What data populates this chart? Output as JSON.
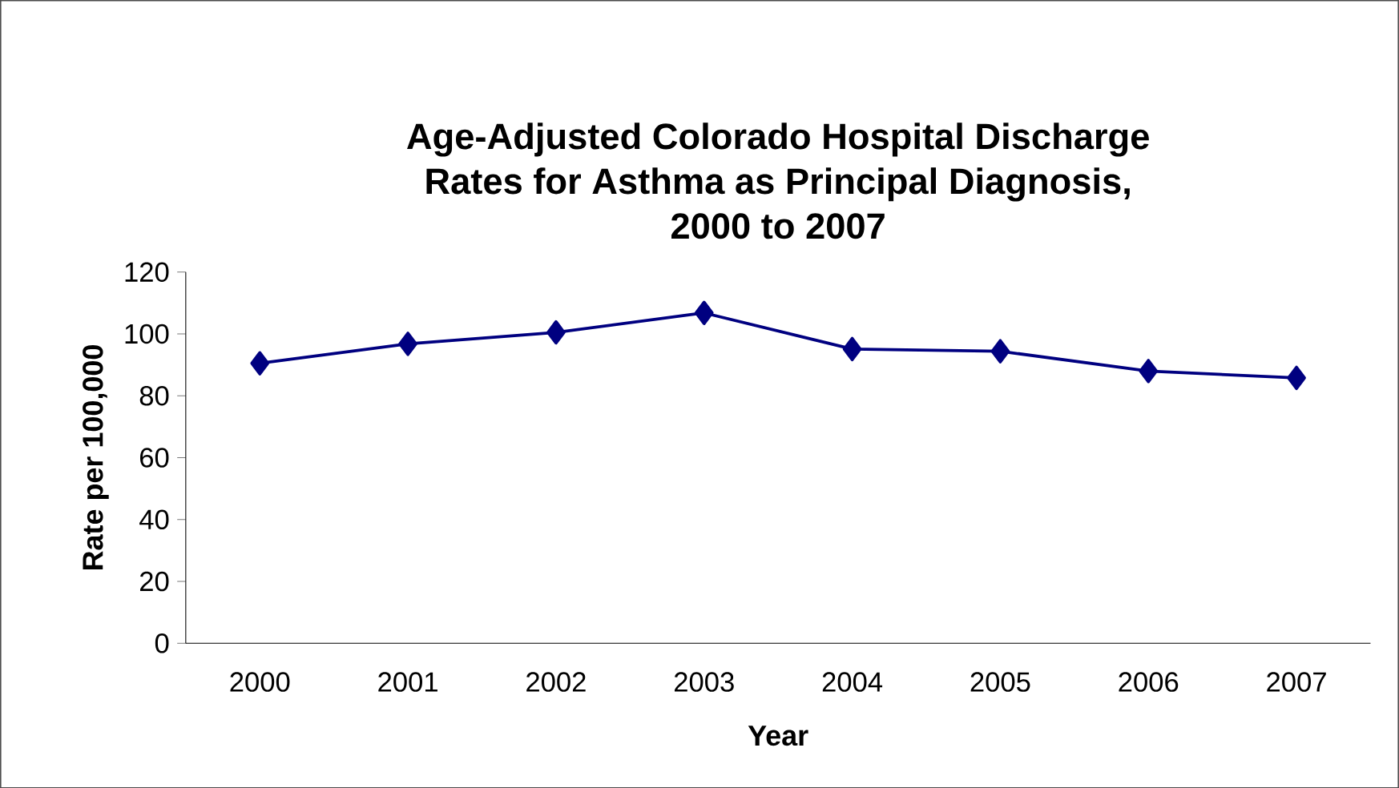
{
  "chart_data": {
    "type": "line",
    "title": "Age-Adjusted Colorado Hospital Discharge\nRates for Asthma as Principal Diagnosis,\n2000 to 2007",
    "xlabel": "Year",
    "ylabel": "Rate per 100,000",
    "categories": [
      "2000",
      "2001",
      "2002",
      "2003",
      "2004",
      "2005",
      "2006",
      "2007"
    ],
    "values": [
      90.5,
      96.8,
      100.5,
      106.8,
      95.1,
      94.4,
      88.0,
      85.8
    ],
    "color": "#000080",
    "marker": "diamond",
    "line_style": "solid",
    "ylim": [
      0,
      120
    ],
    "yticks": [
      0,
      20,
      40,
      60,
      80,
      100,
      120
    ],
    "grid": false
  }
}
